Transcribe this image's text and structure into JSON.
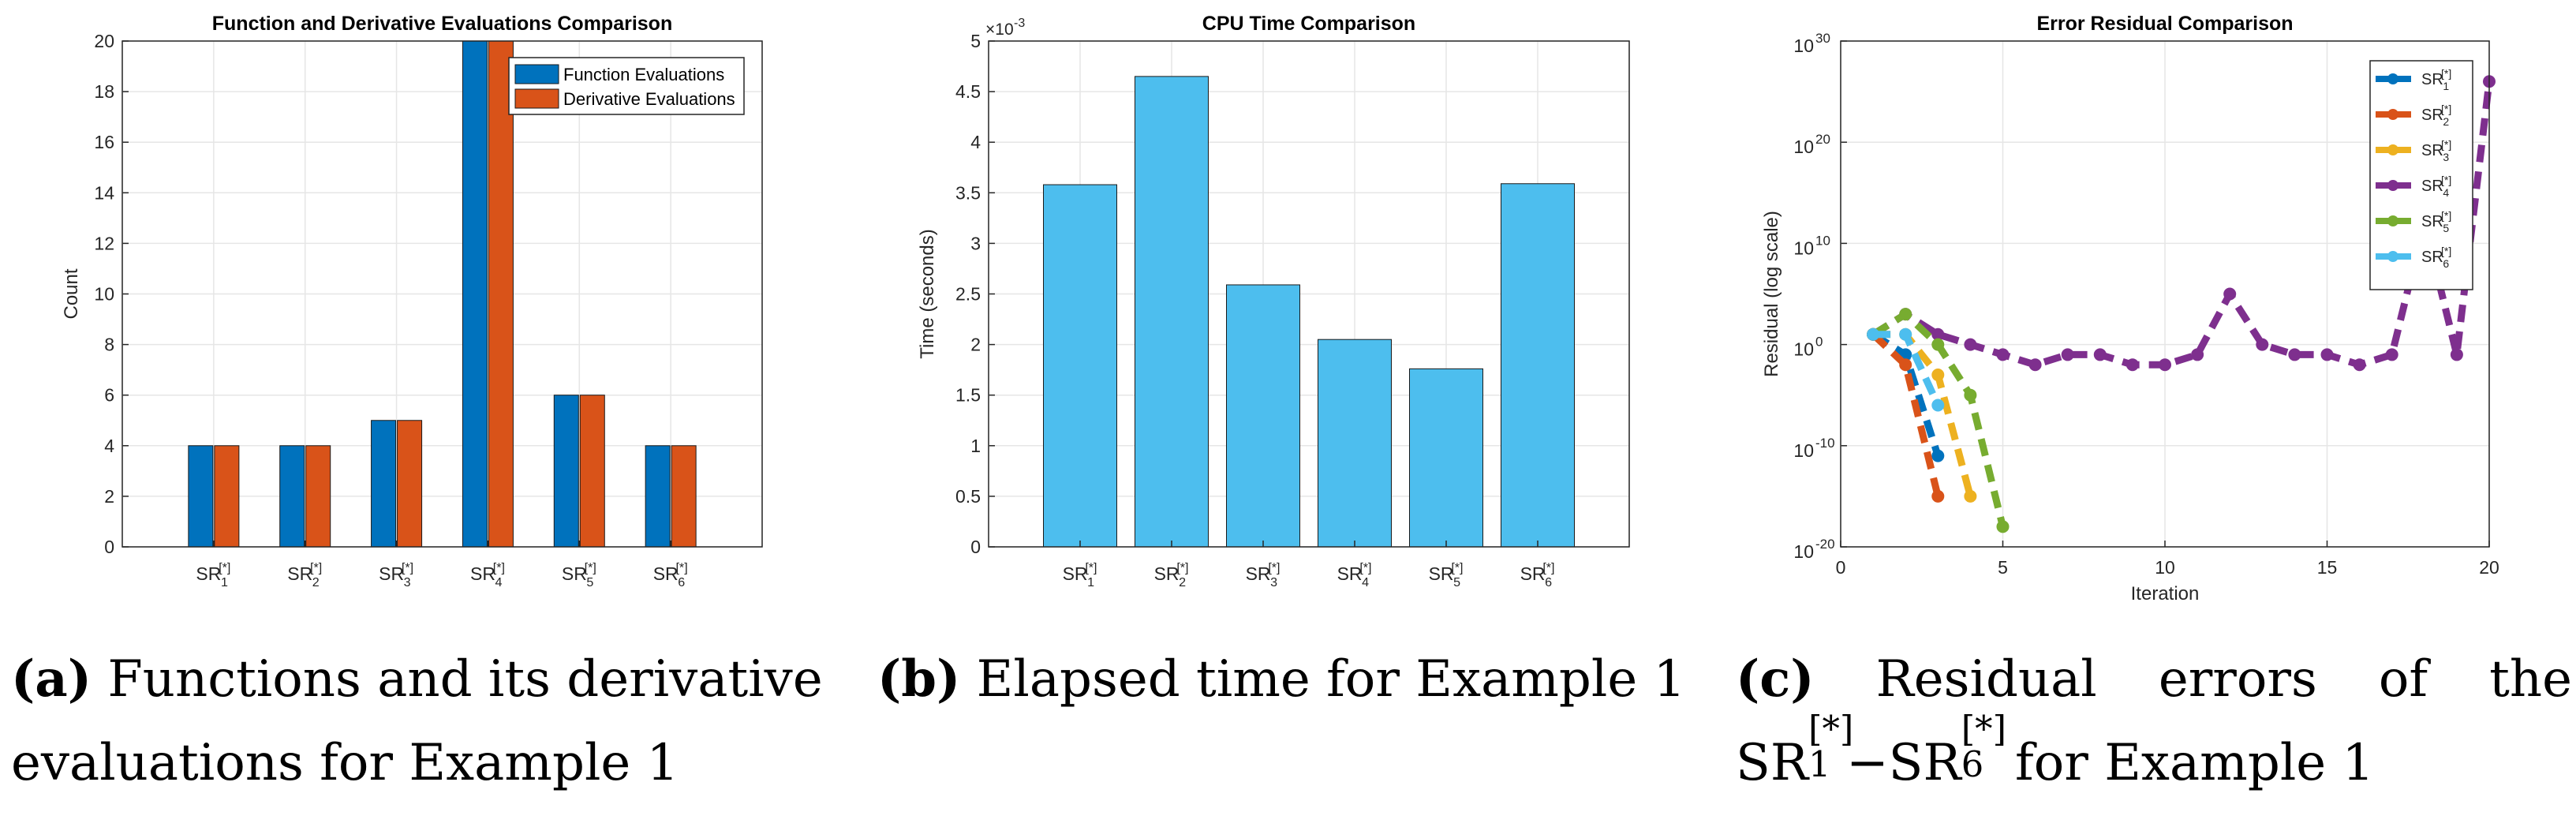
{
  "colors": {
    "function_evaluations": "#0072BD",
    "derivative_evaluations": "#D95319",
    "cpu_bars": "#4DBEEE",
    "sr1": "#0072BD",
    "sr2": "#D95319",
    "sr3": "#EDB120",
    "sr4": "#7E2F8E",
    "sr5": "#77AC30",
    "sr6": "#4DBEEE",
    "grid": "#e6e6e6",
    "axes": "#262626"
  },
  "chart_data": [
    {
      "type": "bar",
      "title": "Function and Derivative Evaluations Comparison",
      "xlabel": "",
      "ylabel": "Count",
      "categories": [
        {
          "base": "SR",
          "sup": "[*]",
          "sub": "1"
        },
        {
          "base": "SR",
          "sup": "[*]",
          "sub": "2"
        },
        {
          "base": "SR",
          "sup": "[*]",
          "sub": "3"
        },
        {
          "base": "SR",
          "sup": "[*]",
          "sub": "4"
        },
        {
          "base": "SR",
          "sup": "[*]",
          "sub": "5"
        },
        {
          "base": "SR",
          "sup": "[*]",
          "sub": "6"
        }
      ],
      "series": [
        {
          "name": "Function Evaluations",
          "values": [
            4,
            4,
            5,
            20,
            6,
            4
          ]
        },
        {
          "name": "Derivative Evaluations",
          "values": [
            4,
            4,
            5,
            20,
            6,
            4
          ]
        }
      ],
      "ylim": [
        0,
        20
      ],
      "yticks": [
        0,
        2,
        4,
        6,
        8,
        10,
        12,
        14,
        16,
        18,
        20
      ],
      "grid": true,
      "legend": "top-right"
    },
    {
      "type": "bar",
      "title": "CPU Time Comparison",
      "xlabel": "",
      "ylabel": "Time (seconds)",
      "scale_label": {
        "base": "×10",
        "exp": "-3"
      },
      "categories": [
        {
          "base": "SR",
          "sup": "[*]",
          "sub": "1"
        },
        {
          "base": "SR",
          "sup": "[*]",
          "sub": "2"
        },
        {
          "base": "SR",
          "sup": "[*]",
          "sub": "3"
        },
        {
          "base": "SR",
          "sup": "[*]",
          "sub": "4"
        },
        {
          "base": "SR",
          "sup": "[*]",
          "sub": "5"
        },
        {
          "base": "SR",
          "sup": "[*]",
          "sub": "6"
        }
      ],
      "values": [
        0.00358,
        0.00465,
        0.00259,
        0.00205,
        0.00176,
        0.00359
      ],
      "ylim": [
        0,
        0.005
      ],
      "yticks": [
        0,
        0.0005,
        0.001,
        0.0015,
        0.002,
        0.0025,
        0.003,
        0.0035,
        0.004,
        0.0045,
        0.005
      ],
      "ytick_labels": [
        "0",
        "0.5",
        "1",
        "1.5",
        "2",
        "2.5",
        "3",
        "3.5",
        "4",
        "4.5",
        "5"
      ],
      "grid": true
    },
    {
      "type": "line",
      "title": "Error Residual Comparison",
      "xlabel": "Iteration",
      "ylabel": "Residual (log scale)",
      "log_y": true,
      "xlim": [
        0,
        20
      ],
      "xticks": [
        0,
        5,
        10,
        15,
        20
      ],
      "ylim": [
        1e-20,
        1e+30
      ],
      "yticks": [
        {
          "value": 1e-20,
          "base": "10",
          "exp": "-20"
        },
        {
          "value": 1e-10,
          "base": "10",
          "exp": "-10"
        },
        {
          "value": 1,
          "base": "10",
          "exp": "0"
        },
        {
          "value": 10000000000.0,
          "base": "10",
          "exp": "10"
        },
        {
          "value": 1e+20,
          "base": "10",
          "exp": "20"
        },
        {
          "value": 1e+30,
          "base": "10",
          "exp": "30"
        }
      ],
      "grid": true,
      "legend": "top-right",
      "series": [
        {
          "label": {
            "base": "SR",
            "sup": "[*]",
            "sub": "1"
          },
          "x": [
            1,
            2,
            3
          ],
          "y": [
            10.0,
            0.1,
            1e-11
          ]
        },
        {
          "label": {
            "base": "SR",
            "sup": "[*]",
            "sub": "2"
          },
          "x": [
            1,
            2,
            3
          ],
          "y": [
            10.0,
            0.01,
            1e-15
          ]
        },
        {
          "label": {
            "base": "SR",
            "sup": "[*]",
            "sub": "3"
          },
          "x": [
            1,
            2,
            3,
            4
          ],
          "y": [
            10.0,
            10.0,
            0.001,
            1e-15
          ]
        },
        {
          "label": {
            "base": "SR",
            "sup": "[*]",
            "sub": "4"
          },
          "x": [
            1,
            2,
            3,
            4,
            5,
            6,
            7,
            8,
            9,
            10,
            11,
            12,
            13,
            14,
            15,
            16,
            17,
            18,
            19,
            20
          ],
          "y": [
            10.0,
            1000.0,
            10.0,
            1.0,
            0.1,
            0.01,
            0.1,
            0.1,
            0.01,
            0.01,
            0.1,
            100000.0,
            1.0,
            0.1,
            0.1,
            0.01,
            0.1,
            1000000000000.0,
            0.1,
            1e+26
          ]
        },
        {
          "label": {
            "base": "SR",
            "sup": "[*]",
            "sub": "5"
          },
          "x": [
            1,
            2,
            3,
            4,
            5
          ],
          "y": [
            10.0,
            1000.0,
            1.0,
            1e-05,
            1e-18
          ]
        },
        {
          "label": {
            "base": "SR",
            "sup": "[*]",
            "sub": "6"
          },
          "x": [
            1,
            2,
            3
          ],
          "y": [
            10.0,
            10.0,
            1e-06
          ]
        }
      ]
    }
  ],
  "captions": {
    "a": {
      "label": "(a)",
      "line1": "Functions and its derivative",
      "line2": "evaluations for Example 1"
    },
    "b": {
      "label": "(b)",
      "line1": "Elapsed time for Example 1"
    },
    "c": {
      "label": "(c)",
      "words1": [
        "Residual",
        "errors",
        "of",
        "the"
      ],
      "line2_tail": "for Example 1",
      "from": {
        "base": "SR",
        "sup": "[*]",
        "sub": "1"
      },
      "dash": "−",
      "to": {
        "base": "SR",
        "sup": "[*]",
        "sub": "6"
      }
    }
  }
}
